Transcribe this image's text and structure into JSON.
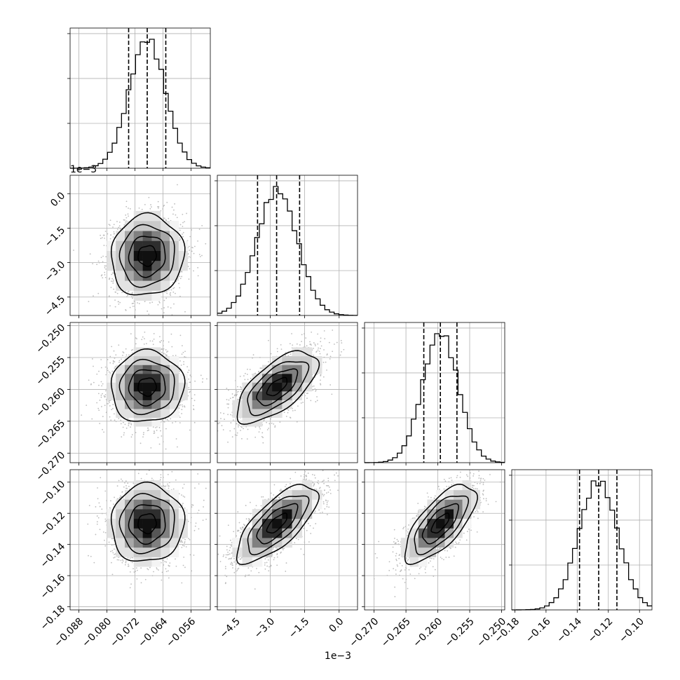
{
  "chart_data": {
    "type": "corner",
    "title": "",
    "grid": true,
    "n_params": 4,
    "params": [
      {
        "range": [
          -0.0905,
          -0.0505
        ],
        "ticks": [
          -0.088,
          -0.08,
          -0.072,
          -0.064,
          -0.056
        ],
        "tick_labels": [
          "−0.088",
          "−0.080",
          "−0.072",
          "−0.064",
          "−0.056"
        ],
        "mean": -0.0685,
        "sd": 0.0052,
        "quantiles": [
          -0.0738,
          -0.0685,
          -0.0632
        ],
        "offset_label": ""
      },
      {
        "range": [
          -5.3,
          0.8
        ],
        "ticks": [
          -4.5,
          -3.0,
          -1.5,
          0.0
        ],
        "tick_labels": [
          "−4.5",
          "−3.0",
          "−1.5",
          "0.0"
        ],
        "mean": -2.7,
        "sd": 0.88,
        "quantiles": [
          -3.55,
          -2.72,
          -1.72
        ],
        "offset_label": "1e−3"
      },
      {
        "range": [
          -0.2715,
          -0.2495
        ],
        "ticks": [
          -0.27,
          -0.265,
          -0.26,
          -0.255,
          -0.25
        ],
        "tick_labels": [
          "−0.270",
          "−0.265",
          "−0.260",
          "−0.255",
          "−0.250"
        ],
        "mean": -0.2596,
        "sd": 0.0028,
        "quantiles": [
          -0.2622,
          -0.2596,
          -0.257
        ],
        "offset_label": ""
      },
      {
        "range": [
          -0.182,
          -0.092
        ],
        "ticks": [
          -0.18,
          -0.16,
          -0.14,
          -0.12,
          -0.1
        ],
        "tick_labels": [
          "−0.18",
          "−0.16",
          "−0.14",
          "−0.12",
          "−0.10"
        ],
        "mean": -0.1265,
        "sd": 0.0125,
        "quantiles": [
          -0.1385,
          -0.1262,
          -0.1145
        ],
        "offset_label": ""
      }
    ],
    "correlations": [
      [
        1.0,
        0.05,
        0.03,
        0.03
      ],
      [
        0.05,
        1.0,
        0.65,
        0.72
      ],
      [
        0.03,
        0.65,
        1.0,
        0.7
      ],
      [
        0.03,
        0.72,
        0.7,
        1.0
      ]
    ],
    "histogram_bins": 30,
    "contour_levels": [
      "0.5-sigma",
      "1-sigma",
      "1.5-sigma",
      "2-sigma"
    ]
  }
}
